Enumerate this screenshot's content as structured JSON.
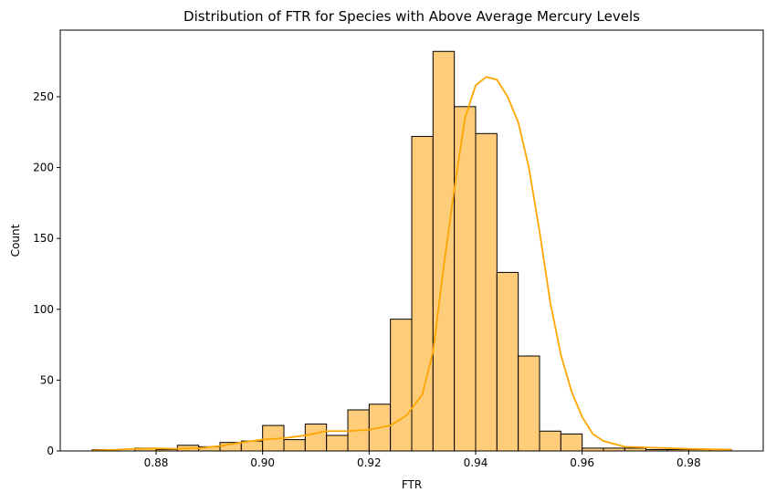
{
  "chart_data": {
    "type": "bar",
    "title": "Distribution of FTR for Species with Above Average Mercury Levels",
    "xlabel": "FTR",
    "ylabel": "Count",
    "xlim": [
      0.862,
      0.994
    ],
    "ylim": [
      0,
      297
    ],
    "xticks": [
      0.88,
      0.9,
      0.92,
      0.94,
      0.96,
      0.98
    ],
    "xtick_labels": [
      "0.88",
      "0.90",
      "0.92",
      "0.94",
      "0.96",
      "0.98"
    ],
    "yticks": [
      0,
      50,
      100,
      150,
      200,
      250
    ],
    "ytick_labels": [
      "0",
      "50",
      "100",
      "150",
      "200",
      "250"
    ],
    "grid": false,
    "legend": "none",
    "bar_color": "#ffcd7a",
    "edge_color": "#000000",
    "kde_color": "#ffa500",
    "bins": {
      "start": 0.868,
      "width": 0.004,
      "counts": [
        1,
        0,
        2,
        1,
        4,
        3,
        6,
        7,
        18,
        8,
        19,
        11,
        29,
        33,
        93,
        222,
        282,
        243,
        224,
        126,
        67,
        14,
        12,
        2,
        2,
        2,
        1,
        1,
        1,
        1
      ]
    },
    "kde": {
      "x": [
        0.868,
        0.872,
        0.876,
        0.88,
        0.884,
        0.888,
        0.892,
        0.896,
        0.9,
        0.904,
        0.908,
        0.912,
        0.916,
        0.92,
        0.924,
        0.927,
        0.93,
        0.932,
        0.934,
        0.936,
        0.938,
        0.94,
        0.942,
        0.944,
        0.946,
        0.948,
        0.95,
        0.952,
        0.954,
        0.956,
        0.958,
        0.96,
        0.962,
        0.964,
        0.968,
        0.972,
        0.976,
        0.98,
        0.984,
        0.988
      ],
      "y": [
        0.5,
        0.8,
        1.5,
        1.8,
        1.5,
        2,
        3.5,
        6,
        8,
        9,
        11,
        14,
        14,
        15,
        18,
        25,
        40,
        70,
        130,
        185,
        235,
        258,
        264,
        262,
        250,
        232,
        200,
        155,
        105,
        68,
        42,
        24,
        12,
        7,
        3,
        2.5,
        2,
        1.5,
        1.2,
        1
      ]
    }
  }
}
